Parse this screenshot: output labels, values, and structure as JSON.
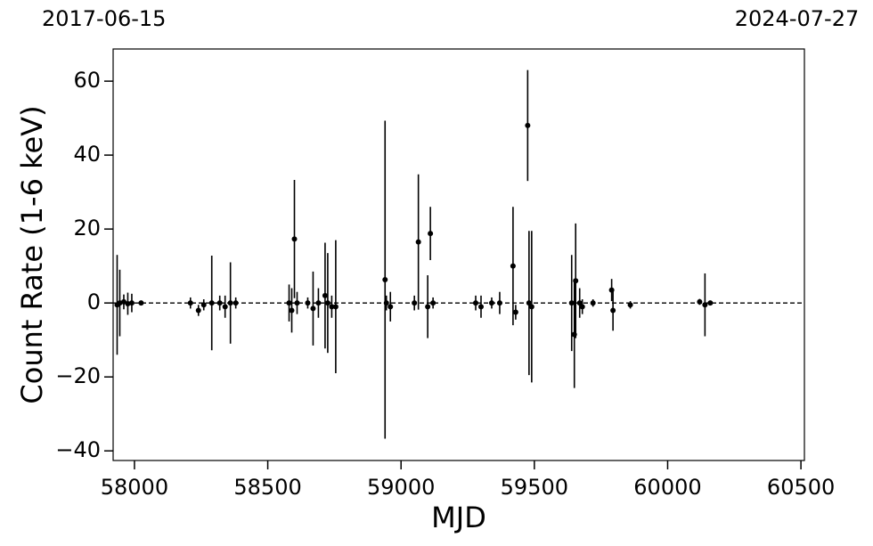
{
  "chart_data": {
    "type": "errorbar",
    "xlabel": "MJD",
    "ylabel": "Count Rate (1-6 keV)",
    "annotations": [
      {
        "x": 57919,
        "text": "2017-06-15"
      },
      {
        "x": 60518,
        "text": "2024-07-27"
      }
    ],
    "xlim": [
      57920,
      60513
    ],
    "ylim": [
      -42.6,
      68.7
    ],
    "xticks": [
      58000,
      58500,
      59000,
      59500,
      60000,
      60500
    ],
    "yticks": [
      {
        "value": -40,
        "label": "−40"
      },
      {
        "value": -20,
        "label": "−20"
      },
      0,
      20,
      40,
      60
    ],
    "hline": 0,
    "color": "#000000",
    "x": [
      57935,
      57945,
      57960,
      57975,
      57990,
      58025,
      58210,
      58240,
      58260,
      58290,
      58320,
      58340,
      58360,
      58380,
      58580,
      58590,
      58600,
      58610,
      58650,
      58670,
      58690,
      58715,
      58725,
      58740,
      58755,
      58940,
      58945,
      58960,
      59050,
      59065,
      59100,
      59110,
      59120,
      59280,
      59300,
      59340,
      59370,
      59420,
      59430,
      59475,
      59480,
      59490,
      59640,
      59650,
      59655,
      59670,
      59680,
      59720,
      59790,
      59795,
      59860,
      60120,
      60140,
      60160
    ],
    "values": [
      -0.5,
      0,
      0.3,
      -0.2,
      0,
      0,
      0,
      -2,
      -0.5,
      0,
      0,
      -1,
      0,
      0,
      0,
      -2,
      17.3,
      0,
      0,
      -1.5,
      0,
      2,
      0,
      -1,
      -1,
      6.3,
      0,
      -1,
      0,
      16.5,
      -1,
      18.8,
      0,
      0,
      -1,
      0,
      0,
      10,
      -2.5,
      48,
      0,
      -1,
      0,
      -8.5,
      6,
      0,
      -1,
      0,
      3.5,
      -2,
      -0.5,
      0.3,
      -0.5,
      0
    ],
    "errors": [
      13.5,
      9,
      2,
      3,
      2.5,
      0.5,
      1.5,
      1.5,
      1.5,
      12.8,
      2,
      3,
      11,
      1.5,
      5,
      6,
      16,
      3,
      1.5,
      10,
      4,
      14.3,
      13.5,
      3,
      18,
      43,
      2,
      4,
      2,
      18.3,
      8.5,
      7.2,
      1.5,
      2,
      3,
      1.5,
      3,
      16,
      2,
      15,
      19.5,
      20.5,
      13,
      14.5,
      15.5,
      4,
      2,
      1,
      3,
      5.5,
      1,
      0.8,
      8.5,
      0.5
    ]
  }
}
